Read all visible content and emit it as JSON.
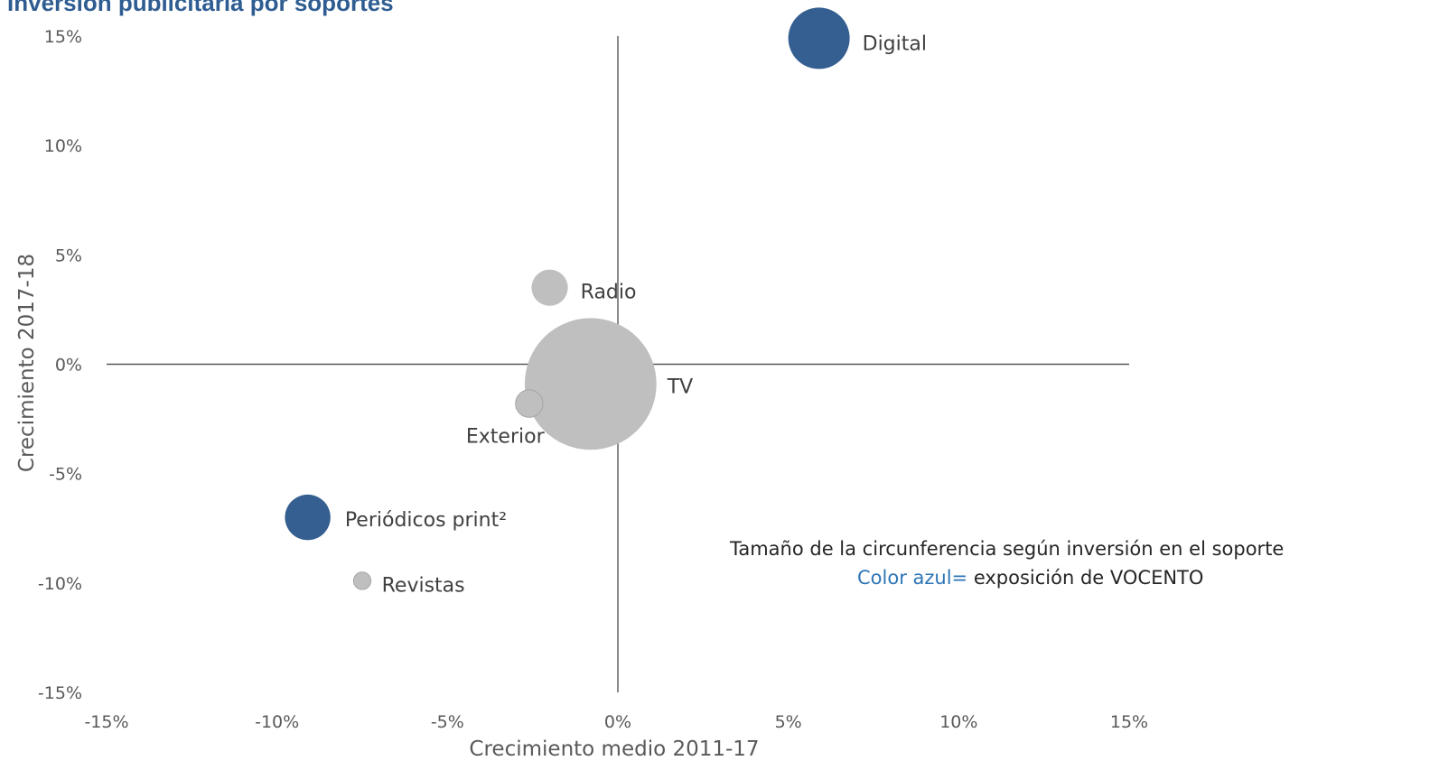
{
  "chart_data": {
    "type": "bubble",
    "title": "Inversión publicitaria por soportes",
    "xlabel": "Crecimiento medio 2011-17",
    "ylabel": "Crecimiento 2017-18",
    "xlim": [
      -0.15,
      0.15
    ],
    "ylim": [
      -0.15,
      0.15
    ],
    "x_ticks": [
      "-15%",
      "-10%",
      "-5%",
      "0%",
      "5%",
      "10%",
      "15%"
    ],
    "y_ticks": [
      "15%",
      "10%",
      "5%",
      "0%",
      "-5%",
      "-10%",
      "-15%"
    ],
    "x_tick_values": [
      -0.15,
      -0.1,
      -0.05,
      0,
      0.05,
      0.1,
      0.15
    ],
    "y_tick_values": [
      0.15,
      0.1,
      0.05,
      0,
      -0.05,
      -0.1,
      -0.15
    ],
    "size_note": "relative advertising investment",
    "points": [
      {
        "label": "Digital",
        "x": 0.059,
        "y": 0.149,
        "size": 1.0,
        "color": "#355f91"
      },
      {
        "label": "Radio",
        "x": -0.02,
        "y": 0.035,
        "size": 0.35,
        "color": "#bfbfbf"
      },
      {
        "label": "TV",
        "x": -0.008,
        "y": -0.009,
        "size": 4.6,
        "color": "#bfbfbf"
      },
      {
        "label": "Exterior",
        "x": -0.026,
        "y": -0.018,
        "size": 0.2,
        "color": "#bfbfbf"
      },
      {
        "label": "Periódicos print²",
        "x": -0.091,
        "y": -0.07,
        "size": 0.55,
        "color": "#355f91"
      },
      {
        "label": "Revistas",
        "x": -0.075,
        "y": -0.099,
        "size": 0.08,
        "color": "#bfbfbf"
      }
    ],
    "grid": false,
    "legend": "none"
  },
  "notes": {
    "line1": "Tamaño de la circunferencia según inversión en el soporte",
    "line2_blue": "Color azul=",
    "line2_rest": " exposición de VOCENTO"
  },
  "colors": {
    "title": "#2f5d92",
    "vocento_blue": "#355f91",
    "grey": "#bfbfbf",
    "axis": "#595959"
  }
}
